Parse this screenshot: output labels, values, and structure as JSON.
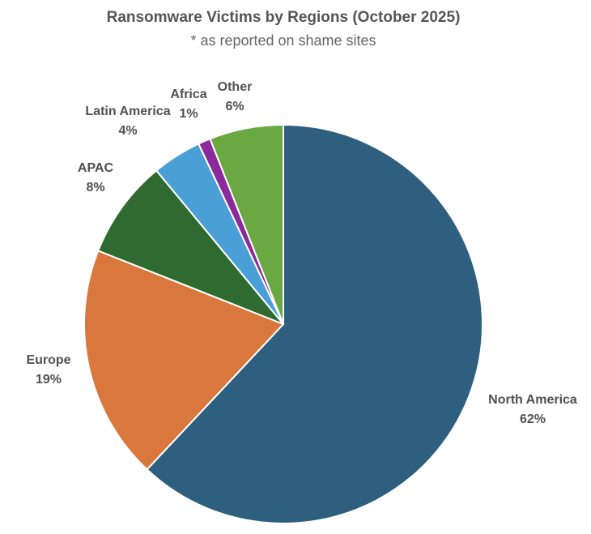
{
  "chart_data": {
    "type": "pie",
    "title": "Ransomware Victims by Regions (October 2025)",
    "subtitle": "* as reported on shame sites",
    "categories": [
      "North America",
      "Europe",
      "APAC",
      "Latin America",
      "Africa",
      "Other"
    ],
    "values": [
      62,
      19,
      8,
      4,
      1,
      6
    ],
    "value_labels": [
      "62%",
      "19%",
      "8%",
      "4%",
      "1%",
      "6%"
    ],
    "colors": [
      "#2e5f7f",
      "#d9773d",
      "#2f6a30",
      "#4a9fd6",
      "#8b2a9a",
      "#6aa842"
    ]
  }
}
